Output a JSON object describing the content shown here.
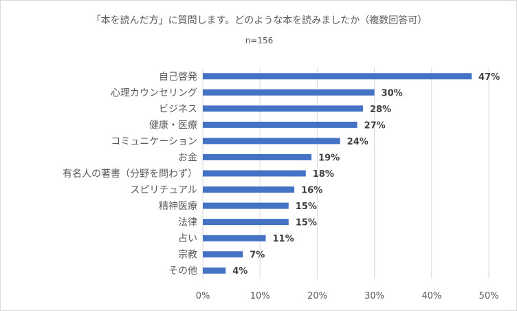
{
  "chart_data": {
    "type": "bar",
    "orientation": "horizontal",
    "title": "「本を読んだ方」に質問します。どのような本を読みましたか（複数回答可）",
    "subtitle": "n=156",
    "categories": [
      "自己啓発",
      "心理カウンセリング",
      "ビジネス",
      "健康・医療",
      "コミュニケーション",
      "お金",
      "有名人の著書（分野を問わず）",
      "スピリチュアル",
      "精神医療",
      "法律",
      "占い",
      "宗教",
      "その他"
    ],
    "values": [
      47,
      30,
      28,
      27,
      24,
      19,
      18,
      16,
      15,
      15,
      11,
      7,
      4
    ],
    "data_labels": [
      "47%",
      "30%",
      "28%",
      "27%",
      "24%",
      "19%",
      "18%",
      "16%",
      "15%",
      "15%",
      "11%",
      "7%",
      "4%"
    ],
    "x_ticks": [
      "0%",
      "10%",
      "20%",
      "30%",
      "40%",
      "50%"
    ],
    "xlim": [
      0,
      50
    ],
    "grid": true,
    "bar_color": "#4472c4"
  }
}
